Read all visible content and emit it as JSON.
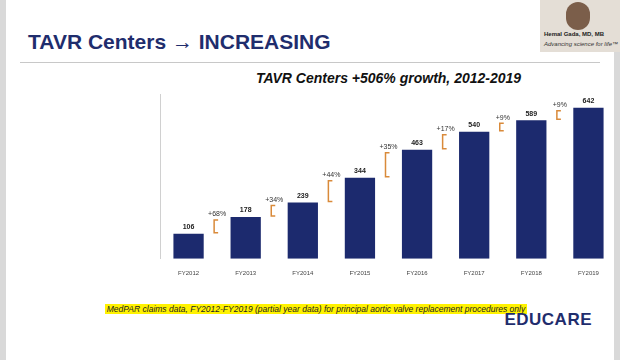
{
  "header": {
    "title": "TAVR Centers → INCREASING"
  },
  "presenter": {
    "name": "Hemal Gada, MD, MB",
    "tagline": "Advancing science for life™"
  },
  "chart_data": {
    "type": "bar",
    "title": "TAVR Centers +506% growth, 2012-2019",
    "categories": [
      "FY2012",
      "FY2013",
      "FY2014",
      "FY2015",
      "FY2016",
      "FY2017",
      "FY2018",
      "FY2019"
    ],
    "values": [
      106,
      178,
      239,
      344,
      463,
      540,
      589,
      642
    ],
    "color": "#1c2a6e",
    "ylim": [
      0,
      700
    ],
    "grid": false,
    "data_labels": true,
    "tick_labels": "x",
    "annotations": [
      "+68%",
      "+34%",
      "+44%",
      "+35%",
      "+17%",
      "+9%",
      "+9%"
    ]
  },
  "footnote": "MedPAR claims data, FY2012-FY2019 (partial year data) for principal aortic valve replacement procedures only",
  "logo": "EDUCARE"
}
